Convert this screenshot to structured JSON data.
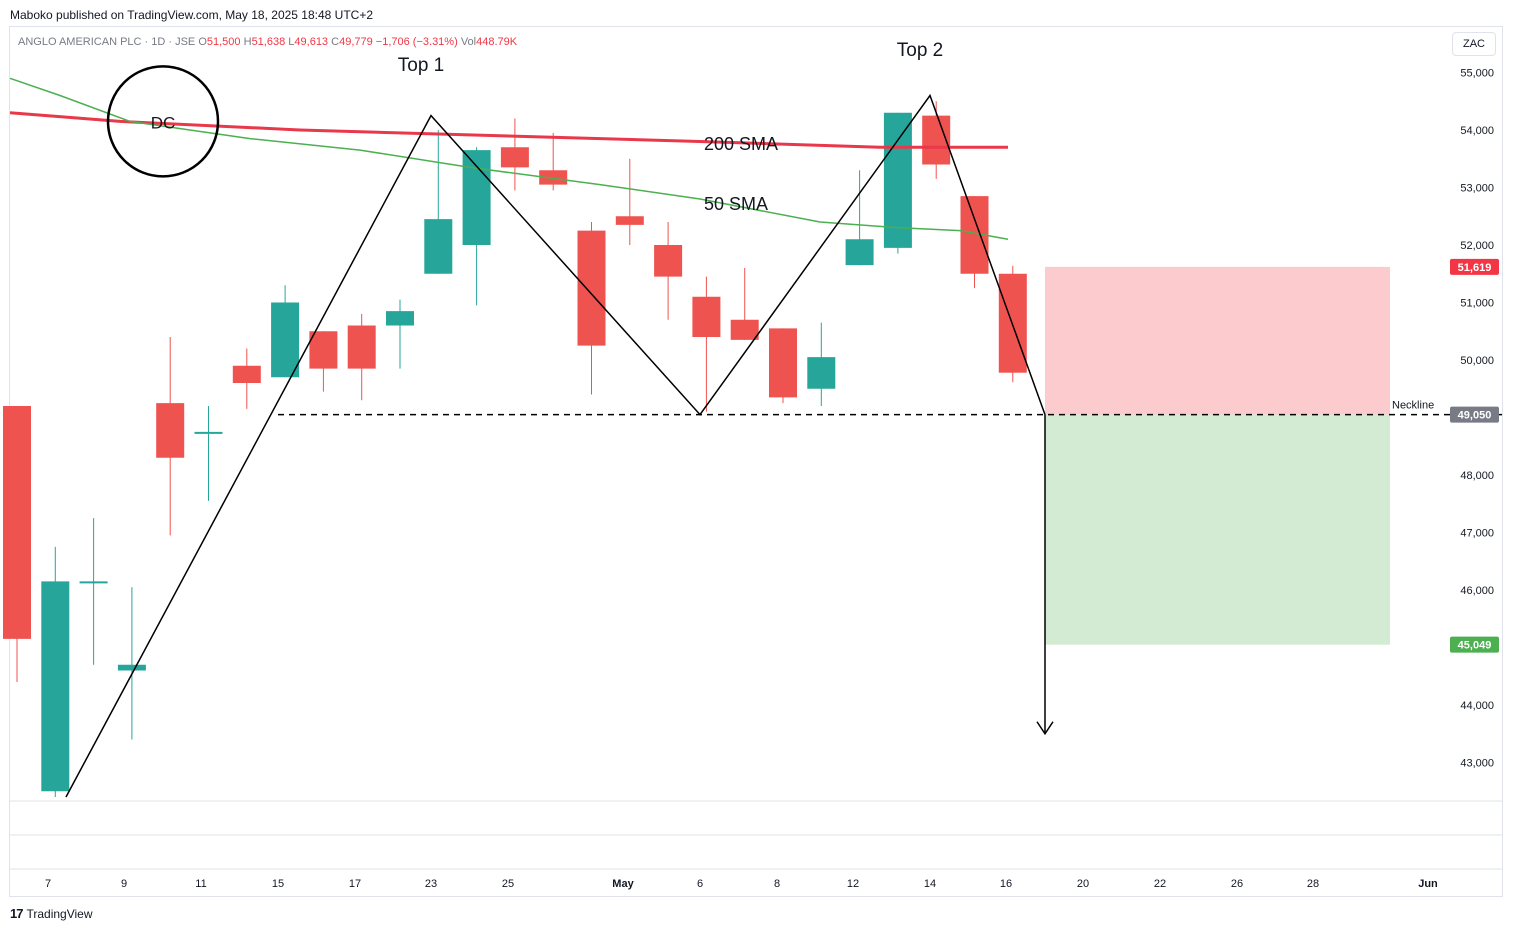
{
  "header": {
    "published": "Maboko published on TradingView.com, May 18, 2025 18:48 UTC+2"
  },
  "symbol": {
    "name": "ANGLO AMERICAN PLC · 1D · JSE",
    "open_label": "O",
    "open": "51,500",
    "high_label": "H",
    "high": "51,638",
    "low_label": "L",
    "low": "49,613",
    "close_label": "C",
    "close": "49,779",
    "change": "−1,706 (−3.31%)",
    "vol_label": "Vol",
    "vol": "448.79K"
  },
  "currency_button": "ZAC",
  "footer": {
    "logo_mark": "17",
    "logo_text": "TradingView"
  },
  "colors": {
    "up": "#26a69a",
    "down": "#ef5350",
    "sma200": "#e8384a",
    "sma50": "#4caf50",
    "stop_zone": "#fccbcd",
    "target_zone": "#d3ebd3",
    "label_red": "#f23645",
    "label_green": "#4caf50",
    "label_gray": "#787b86"
  },
  "chart_data": {
    "type": "candlestick",
    "y_ticks": [
      "55,000",
      "54,000",
      "53,000",
      "52,000",
      "51,000",
      "50,000",
      "48,000",
      "47,000",
      "46,000",
      "44,000",
      "43,000"
    ],
    "x_ticks": [
      "7",
      "9",
      "11",
      "15",
      "17",
      "23",
      "25",
      "May",
      "6",
      "8",
      "12",
      "14",
      "16",
      "20",
      "22",
      "26",
      "28",
      "Jun"
    ],
    "candles": [
      {
        "o": 49200,
        "h": 49200,
        "l": 44400,
        "c": 45150
      },
      {
        "o": 42500,
        "h": 46750,
        "l": 42400,
        "c": 46150
      },
      {
        "o": 46150,
        "h": 47250,
        "l": 44700,
        "c": 46150
      },
      {
        "o": 44600,
        "h": 46050,
        "l": 43400,
        "c": 44700
      },
      {
        "o": 49250,
        "h": 50400,
        "l": 46950,
        "c": 48300
      },
      {
        "o": 48750,
        "h": 49200,
        "l": 47550,
        "c": 48750
      },
      {
        "o": 49900,
        "h": 50200,
        "l": 49150,
        "c": 49600
      },
      {
        "o": 49700,
        "h": 51300,
        "l": 49700,
        "c": 51000
      },
      {
        "o": 50500,
        "h": 50500,
        "l": 49450,
        "c": 49850
      },
      {
        "o": 50600,
        "h": 50800,
        "l": 49300,
        "c": 49850
      },
      {
        "o": 50600,
        "h": 51050,
        "l": 49850,
        "c": 50850
      },
      {
        "o": 51500,
        "h": 54000,
        "l": 51500,
        "c": 52450
      },
      {
        "o": 52000,
        "h": 53700,
        "l": 50950,
        "c": 53650
      },
      {
        "o": 53700,
        "h": 54200,
        "l": 52950,
        "c": 53350
      },
      {
        "o": 53300,
        "h": 53950,
        "l": 52950,
        "c": 53050
      },
      {
        "o": 52250,
        "h": 52400,
        "l": 49400,
        "c": 50250
      },
      {
        "o": 52500,
        "h": 53500,
        "l": 52000,
        "c": 52350
      },
      {
        "o": 52000,
        "h": 52400,
        "l": 50700,
        "c": 51450
      },
      {
        "o": 51100,
        "h": 51450,
        "l": 49100,
        "c": 50400
      },
      {
        "o": 50700,
        "h": 51600,
        "l": 50350,
        "c": 50350
      },
      {
        "o": 50550,
        "h": 50550,
        "l": 49250,
        "c": 49350
      },
      {
        "o": 49500,
        "h": 50650,
        "l": 49200,
        "c": 50050
      },
      {
        "o": 51650,
        "h": 53300,
        "l": 51650,
        "c": 52100
      },
      {
        "o": 51950,
        "h": 54300,
        "l": 51850,
        "c": 54300
      },
      {
        "o": 54250,
        "h": 54500,
        "l": 53150,
        "c": 53400
      },
      {
        "o": 52850,
        "h": 52850,
        "l": 51250,
        "c": 51500
      },
      {
        "o": 51500,
        "h": 51638,
        "l": 49613,
        "c": 49779
      }
    ],
    "sma200": {
      "label": "200 SMA"
    },
    "sma50": {
      "label": "50 SMA"
    },
    "annotations": {
      "top1": "Top 1",
      "top2": "Top 2",
      "circle": "DC",
      "neckline": "Neckline"
    },
    "price_labels": {
      "last": "51,619",
      "neckline": "49,050",
      "target": "45,049"
    },
    "levels": {
      "neckline": 49050,
      "stop": 51619,
      "target": 45049,
      "arrow_to": 43500
    }
  }
}
